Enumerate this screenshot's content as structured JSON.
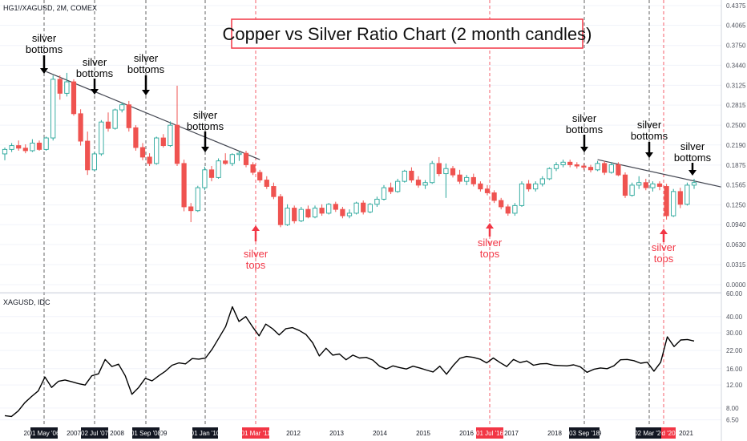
{
  "chart_data": [
    {
      "type": "candlestick",
      "title": "Copper vs Silver Ratio Chart (2 month candles)",
      "symbol_label": "HG1!/XAGUSD, 2M, COMEX",
      "y_ticks": [
        "0.0000",
        "0.0315",
        "0.0630",
        "0.0940",
        "0.1250",
        "0.1565",
        "0.1875",
        "0.2190",
        "0.2500",
        "0.2815",
        "0.3125",
        "0.3440",
        "0.3750",
        "0.4065",
        "0.4375"
      ],
      "ylim": [
        0,
        0.4375
      ],
      "up_color": "#26a69a",
      "down_color": "#ef5350",
      "candles": [
        {
          "o": 0.205,
          "h": 0.215,
          "l": 0.195,
          "c": 0.212
        },
        {
          "o": 0.212,
          "h": 0.222,
          "l": 0.208,
          "c": 0.218
        },
        {
          "o": 0.218,
          "h": 0.226,
          "l": 0.21,
          "c": 0.214
        },
        {
          "o": 0.214,
          "h": 0.22,
          "l": 0.206,
          "c": 0.21
        },
        {
          "o": 0.21,
          "h": 0.228,
          "l": 0.208,
          "c": 0.222
        },
        {
          "o": 0.222,
          "h": 0.226,
          "l": 0.21,
          "c": 0.212
        },
        {
          "o": 0.212,
          "h": 0.232,
          "l": 0.21,
          "c": 0.23
        },
        {
          "o": 0.23,
          "h": 0.328,
          "l": 0.226,
          "c": 0.322
        },
        {
          "o": 0.322,
          "h": 0.328,
          "l": 0.29,
          "c": 0.3
        },
        {
          "o": 0.3,
          "h": 0.332,
          "l": 0.295,
          "c": 0.318
        },
        {
          "o": 0.318,
          "h": 0.322,
          "l": 0.265,
          "c": 0.268
        },
        {
          "o": 0.268,
          "h": 0.275,
          "l": 0.218,
          "c": 0.225
        },
        {
          "o": 0.225,
          "h": 0.24,
          "l": 0.172,
          "c": 0.18
        },
        {
          "o": 0.18,
          "h": 0.208,
          "l": 0.178,
          "c": 0.205
        },
        {
          "o": 0.205,
          "h": 0.258,
          "l": 0.202,
          "c": 0.255
        },
        {
          "o": 0.255,
          "h": 0.27,
          "l": 0.24,
          "c": 0.245
        },
        {
          "o": 0.245,
          "h": 0.276,
          "l": 0.243,
          "c": 0.274
        },
        {
          "o": 0.274,
          "h": 0.286,
          "l": 0.27,
          "c": 0.282
        },
        {
          "o": 0.282,
          "h": 0.288,
          "l": 0.24,
          "c": 0.246
        },
        {
          "o": 0.246,
          "h": 0.25,
          "l": 0.21,
          "c": 0.215
        },
        {
          "o": 0.215,
          "h": 0.222,
          "l": 0.195,
          "c": 0.2
        },
        {
          "o": 0.2,
          "h": 0.206,
          "l": 0.186,
          "c": 0.19
        },
        {
          "o": 0.19,
          "h": 0.232,
          "l": 0.188,
          "c": 0.23
        },
        {
          "o": 0.23,
          "h": 0.236,
          "l": 0.215,
          "c": 0.218
        },
        {
          "o": 0.218,
          "h": 0.256,
          "l": 0.216,
          "c": 0.25
        },
        {
          "o": 0.25,
          "h": 0.312,
          "l": 0.186,
          "c": 0.19
        },
        {
          "o": 0.19,
          "h": 0.196,
          "l": 0.115,
          "c": 0.122
        },
        {
          "o": 0.122,
          "h": 0.128,
          "l": 0.098,
          "c": 0.116
        },
        {
          "o": 0.116,
          "h": 0.155,
          "l": 0.114,
          "c": 0.152
        },
        {
          "o": 0.152,
          "h": 0.185,
          "l": 0.148,
          "c": 0.18
        },
        {
          "o": 0.18,
          "h": 0.186,
          "l": 0.162,
          "c": 0.168
        },
        {
          "o": 0.168,
          "h": 0.198,
          "l": 0.166,
          "c": 0.194
        },
        {
          "o": 0.194,
          "h": 0.206,
          "l": 0.188,
          "c": 0.19
        },
        {
          "o": 0.19,
          "h": 0.206,
          "l": 0.186,
          "c": 0.204
        },
        {
          "o": 0.204,
          "h": 0.21,
          "l": 0.194,
          "c": 0.206
        },
        {
          "o": 0.206,
          "h": 0.21,
          "l": 0.184,
          "c": 0.188
        },
        {
          "o": 0.188,
          "h": 0.192,
          "l": 0.172,
          "c": 0.176
        },
        {
          "o": 0.176,
          "h": 0.18,
          "l": 0.16,
          "c": 0.164
        },
        {
          "o": 0.164,
          "h": 0.17,
          "l": 0.15,
          "c": 0.154
        },
        {
          "o": 0.154,
          "h": 0.16,
          "l": 0.134,
          "c": 0.138
        },
        {
          "o": 0.138,
          "h": 0.142,
          "l": 0.09,
          "c": 0.094
        },
        {
          "o": 0.094,
          "h": 0.126,
          "l": 0.092,
          "c": 0.12
        },
        {
          "o": 0.12,
          "h": 0.124,
          "l": 0.096,
          "c": 0.1
        },
        {
          "o": 0.1,
          "h": 0.122,
          "l": 0.098,
          "c": 0.118
        },
        {
          "o": 0.118,
          "h": 0.124,
          "l": 0.104,
          "c": 0.106
        },
        {
          "o": 0.106,
          "h": 0.124,
          "l": 0.104,
          "c": 0.12
        },
        {
          "o": 0.12,
          "h": 0.126,
          "l": 0.108,
          "c": 0.112
        },
        {
          "o": 0.112,
          "h": 0.128,
          "l": 0.11,
          "c": 0.126
        },
        {
          "o": 0.126,
          "h": 0.13,
          "l": 0.114,
          "c": 0.118
        },
        {
          "o": 0.118,
          "h": 0.122,
          "l": 0.104,
          "c": 0.108
        },
        {
          "o": 0.108,
          "h": 0.118,
          "l": 0.104,
          "c": 0.112
        },
        {
          "o": 0.112,
          "h": 0.13,
          "l": 0.11,
          "c": 0.128
        },
        {
          "o": 0.128,
          "h": 0.132,
          "l": 0.11,
          "c": 0.114
        },
        {
          "o": 0.114,
          "h": 0.128,
          "l": 0.112,
          "c": 0.126
        },
        {
          "o": 0.126,
          "h": 0.138,
          "l": 0.122,
          "c": 0.134
        },
        {
          "o": 0.134,
          "h": 0.156,
          "l": 0.132,
          "c": 0.152
        },
        {
          "o": 0.152,
          "h": 0.16,
          "l": 0.142,
          "c": 0.146
        },
        {
          "o": 0.146,
          "h": 0.166,
          "l": 0.144,
          "c": 0.162
        },
        {
          "o": 0.162,
          "h": 0.18,
          "l": 0.16,
          "c": 0.178
        },
        {
          "o": 0.178,
          "h": 0.184,
          "l": 0.16,
          "c": 0.164
        },
        {
          "o": 0.164,
          "h": 0.17,
          "l": 0.152,
          "c": 0.156
        },
        {
          "o": 0.156,
          "h": 0.164,
          "l": 0.15,
          "c": 0.16
        },
        {
          "o": 0.16,
          "h": 0.194,
          "l": 0.158,
          "c": 0.19
        },
        {
          "o": 0.19,
          "h": 0.2,
          "l": 0.17,
          "c": 0.174
        },
        {
          "o": 0.174,
          "h": 0.19,
          "l": 0.136,
          "c": 0.182
        },
        {
          "o": 0.182,
          "h": 0.186,
          "l": 0.168,
          "c": 0.172
        },
        {
          "o": 0.172,
          "h": 0.18,
          "l": 0.158,
          "c": 0.162
        },
        {
          "o": 0.162,
          "h": 0.172,
          "l": 0.156,
          "c": 0.168
        },
        {
          "o": 0.168,
          "h": 0.174,
          "l": 0.154,
          "c": 0.158
        },
        {
          "o": 0.158,
          "h": 0.162,
          "l": 0.146,
          "c": 0.15
        },
        {
          "o": 0.15,
          "h": 0.156,
          "l": 0.14,
          "c": 0.144
        },
        {
          "o": 0.144,
          "h": 0.148,
          "l": 0.128,
          "c": 0.132
        },
        {
          "o": 0.132,
          "h": 0.136,
          "l": 0.118,
          "c": 0.122
        },
        {
          "o": 0.122,
          "h": 0.126,
          "l": 0.108,
          "c": 0.112
        },
        {
          "o": 0.112,
          "h": 0.128,
          "l": 0.108,
          "c": 0.124
        },
        {
          "o": 0.124,
          "h": 0.162,
          "l": 0.122,
          "c": 0.158
        },
        {
          "o": 0.158,
          "h": 0.164,
          "l": 0.146,
          "c": 0.15
        },
        {
          "o": 0.15,
          "h": 0.162,
          "l": 0.146,
          "c": 0.158
        },
        {
          "o": 0.158,
          "h": 0.17,
          "l": 0.154,
          "c": 0.166
        },
        {
          "o": 0.166,
          "h": 0.184,
          "l": 0.164,
          "c": 0.182
        },
        {
          "o": 0.182,
          "h": 0.192,
          "l": 0.178,
          "c": 0.188
        },
        {
          "o": 0.188,
          "h": 0.196,
          "l": 0.184,
          "c": 0.192
        },
        {
          "o": 0.192,
          "h": 0.196,
          "l": 0.184,
          "c": 0.188
        },
        {
          "o": 0.188,
          "h": 0.192,
          "l": 0.182,
          "c": 0.186
        },
        {
          "o": 0.186,
          "h": 0.19,
          "l": 0.18,
          "c": 0.184
        },
        {
          "o": 0.184,
          "h": 0.188,
          "l": 0.176,
          "c": 0.18
        },
        {
          "o": 0.18,
          "h": 0.194,
          "l": 0.178,
          "c": 0.19
        },
        {
          "o": 0.19,
          "h": 0.194,
          "l": 0.172,
          "c": 0.176
        },
        {
          "o": 0.176,
          "h": 0.192,
          "l": 0.174,
          "c": 0.188
        },
        {
          "o": 0.188,
          "h": 0.192,
          "l": 0.17,
          "c": 0.172
        },
        {
          "o": 0.172,
          "h": 0.176,
          "l": 0.136,
          "c": 0.14
        },
        {
          "o": 0.14,
          "h": 0.16,
          "l": 0.138,
          "c": 0.156
        },
        {
          "o": 0.156,
          "h": 0.17,
          "l": 0.15,
          "c": 0.16
        },
        {
          "o": 0.16,
          "h": 0.166,
          "l": 0.148,
          "c": 0.152
        },
        {
          "o": 0.152,
          "h": 0.162,
          "l": 0.146,
          "c": 0.158
        },
        {
          "o": 0.158,
          "h": 0.162,
          "l": 0.148,
          "c": 0.154
        },
        {
          "o": 0.154,
          "h": 0.158,
          "l": 0.102,
          "c": 0.108
        },
        {
          "o": 0.108,
          "h": 0.15,
          "l": 0.106,
          "c": 0.146
        },
        {
          "o": 0.146,
          "h": 0.152,
          "l": 0.12,
          "c": 0.126
        },
        {
          "o": 0.126,
          "h": 0.16,
          "l": 0.124,
          "c": 0.156
        },
        {
          "o": 0.156,
          "h": 0.166,
          "l": 0.15,
          "c": 0.16
        }
      ],
      "trendlines": [
        {
          "from_index": 6,
          "from": 0.334,
          "to_index": 37,
          "to": 0.196
        },
        {
          "from_index": 86,
          "from": 0.196,
          "to_index": 104,
          "to": 0.153
        }
      ]
    },
    {
      "type": "line",
      "title": "XAGUSD, IDC",
      "y_ticks": [
        "6.50",
        "8.00",
        "12.00",
        "16.00",
        "22.00",
        "30.00",
        "40.00",
        "60.00"
      ],
      "y_scale": "log",
      "ylim": [
        6.2,
        60
      ],
      "values": [
        7.0,
        6.9,
        7.6,
        8.8,
        9.8,
        10.8,
        13.8,
        11.5,
        12.8,
        13.1,
        12.7,
        12.3,
        12.0,
        14.1,
        14.6,
        18.8,
        16.6,
        17.3,
        14.1,
        10.2,
        11.5,
        13.5,
        12.9,
        14.1,
        15.3,
        17.0,
        17.7,
        17.4,
        19.1,
        18.9,
        19.3,
        22.6,
        27.5,
        33.5,
        47.5,
        36.7,
        40.0,
        33.5,
        28.5,
        35.0,
        32.3,
        28.9,
        32.3,
        32.9,
        31.3,
        29.2,
        25.2,
        20.0,
        22.9,
        20.3,
        20.7,
        18.7,
        20.3,
        19.3,
        19.5,
        18.6,
        16.7,
        15.9,
        16.8,
        16.3,
        15.9,
        16.7,
        16.2,
        15.6,
        15.1,
        16.7,
        14.5,
        16.9,
        19.2,
        19.8,
        19.5,
        18.9,
        17.7,
        19.3,
        17.8,
        16.6,
        18.8,
        17.8,
        18.3,
        17.0,
        17.4,
        17.5,
        17.0,
        16.9,
        16.8,
        17.1,
        16.5,
        15.0,
        15.8,
        16.2,
        16.0,
        16.8,
        18.7,
        18.8,
        18.4,
        17.6,
        17.9,
        15.3,
        17.9,
        28.0,
        23.6,
        26.5,
        26.7,
        26.0
      ]
    }
  ],
  "x_axis": {
    "labels": [
      "20",
      "2007",
      "2008",
      "09",
      "2012",
      "2013",
      "2014",
      "2015",
      "2016",
      "2017",
      "2018",
      "19",
      "2021"
    ],
    "badges": [
      {
        "text": "01 May '06",
        "color": "#131722"
      },
      {
        "text": "02 Jul '07",
        "color": "#131722"
      },
      {
        "text": "01 Sep '08",
        "color": "#131722"
      },
      {
        "text": "01 Jan '10",
        "color": "#131722"
      },
      {
        "text": "01 Mar '11",
        "color": "#f23645"
      },
      {
        "text": "01 Jul '16",
        "color": "#f23645"
      },
      {
        "text": "03 Sep '18",
        "color": "#131722"
      },
      {
        "text": "02 Mar '20",
        "color": "#131722"
      },
      {
        "text": "d '20",
        "color": "#f23645"
      }
    ]
  },
  "annotations": {
    "bottoms": [
      {
        "line1": "silver",
        "line2": "bottoms"
      },
      {
        "line1": "silver",
        "line2": "bottoms"
      },
      {
        "line1": "silver",
        "line2": "bottoms"
      },
      {
        "line1": "silver",
        "line2": "bottoms"
      },
      {
        "line1": "silver",
        "line2": "bottoms"
      },
      {
        "line1": "silver",
        "line2": "bottoms"
      },
      {
        "line1": "silver",
        "line2": "bottoms"
      }
    ],
    "tops": [
      {
        "line1": "silver",
        "line2": "tops"
      },
      {
        "line1": "silver",
        "line2": "tops"
      },
      {
        "line1": "silver",
        "line2": "tops"
      }
    ],
    "bottom_color": "#000000",
    "top_color": "#f23645"
  },
  "colors": {
    "grid": "#f0f3fa",
    "vline_dark": "#333333",
    "vline_red": "#f23645",
    "title_border": "#f23645"
  }
}
